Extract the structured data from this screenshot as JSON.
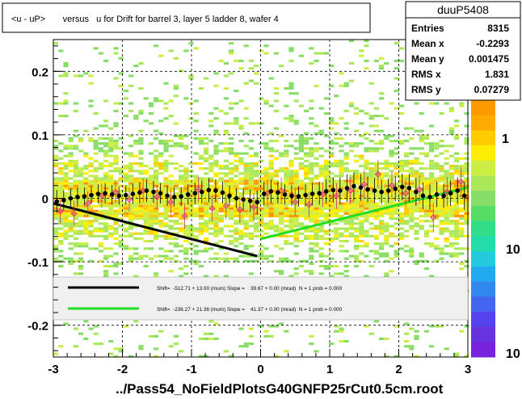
{
  "chart_data": {
    "type": "scatter",
    "title": "<u - uP>       versus   u for Drift for barrel 3, layer 5 ladder 8, wafer 4",
    "xlabel": "",
    "ylabel": "",
    "footer": "../Pass54_NoFieldPlotsG40GNFP25rCut0.5cm.root",
    "xlim": [
      -3,
      3
    ],
    "ylim": [
      -0.25,
      0.25
    ],
    "x_ticks": [
      -3,
      -2,
      -1,
      0,
      1,
      2,
      3
    ],
    "x_tick_labels": [
      "-3",
      "-2",
      "-1",
      "0",
      "1",
      "2",
      "3"
    ],
    "y_ticks": [
      -0.2,
      -0.1,
      0,
      0.1,
      0.2
    ],
    "y_tick_labels": [
      "-0.2",
      "-0.1",
      "0",
      "0.1",
      "0.2"
    ],
    "grid": true,
    "stats": {
      "name": "duuP5408",
      "rows": [
        {
          "label": "Entries",
          "value": "8315"
        },
        {
          "label": "Mean x",
          "value": "-0.2293"
        },
        {
          "label": "Mean y",
          "value": "0.001475"
        },
        {
          "label": "RMS x",
          "value": "1.831"
        },
        {
          "label": "RMS y",
          "value": "0.07279"
        }
      ]
    },
    "colorbar_labels": [
      "1",
      "10",
      "10"
    ],
    "fits": [
      {
        "color": "#000000",
        "x": [
          -3.0,
          -0.05
        ],
        "y": [
          -0.008,
          -0.091
        ],
        "text": "Shift=  -512.71 + 13.00 (mum) Slope =    39.67 + 0.00 (mrad)  N = 1 prob = 0.000"
      },
      {
        "color": "#22dd22",
        "x": [
          0.0,
          3.0
        ],
        "y": [
          -0.064,
          0.017
        ],
        "text": "Shift=  -236.27 + 21.36 (mum) Slope =    41.37 + 0.00 (mrad)  N = 1 prob = 0.000"
      }
    ],
    "profile_black": {
      "x": [
        -2.95,
        -2.85,
        -2.75,
        -2.65,
        -2.55,
        -2.45,
        -2.35,
        -2.25,
        -2.15,
        -2.05,
        -1.95,
        -1.85,
        -1.75,
        -1.65,
        -1.55,
        -1.45,
        -1.35,
        -1.25,
        -1.15,
        -1.05,
        -0.95,
        -0.85,
        -0.75,
        -0.65,
        -0.55,
        -0.45,
        -0.35,
        -0.25,
        -0.15,
        -0.05,
        0.05,
        0.15,
        0.25,
        0.35,
        0.45,
        0.55,
        0.65,
        0.75,
        0.85,
        0.95,
        1.05,
        1.15,
        1.25,
        1.35,
        1.45,
        1.55,
        1.65,
        1.75,
        1.85,
        1.95,
        2.05,
        2.15,
        2.25,
        2.35,
        2.45,
        2.55,
        2.65,
        2.75,
        2.85,
        2.95
      ],
      "y": [
        -0.005,
        -0.003,
        0.0,
        0.002,
        0.003,
        0.005,
        0.007,
        0.008,
        0.006,
        0.004,
        0.005,
        0.007,
        0.009,
        0.012,
        0.01,
        0.008,
        0.004,
        0.002,
        0.003,
        0.006,
        0.008,
        0.01,
        0.013,
        0.012,
        0.009,
        0.004,
        0.0,
        -0.002,
        -0.004,
        -0.006,
        0.007,
        0.011,
        0.009,
        0.006,
        0.004,
        0.003,
        0.005,
        0.007,
        0.008,
        0.011,
        0.013,
        0.012,
        0.016,
        0.019,
        0.017,
        0.014,
        0.012,
        0.01,
        0.012,
        0.015,
        0.018,
        0.016,
        0.01,
        0.004,
        0.002,
        0.006,
        0.004,
        0.008,
        0.012,
        0.004
      ],
      "err": [
        0.018,
        0.016,
        0.015,
        0.015,
        0.014,
        0.014,
        0.015,
        0.016,
        0.015,
        0.014,
        0.015,
        0.016,
        0.017,
        0.018,
        0.017,
        0.016,
        0.016,
        0.015,
        0.015,
        0.016,
        0.017,
        0.018,
        0.019,
        0.018,
        0.017,
        0.016,
        0.016,
        0.017,
        0.018,
        0.019,
        0.019,
        0.018,
        0.017,
        0.016,
        0.016,
        0.016,
        0.017,
        0.018,
        0.018,
        0.019,
        0.02,
        0.021,
        0.022,
        0.022,
        0.021,
        0.02,
        0.02,
        0.019,
        0.019,
        0.02,
        0.021,
        0.022,
        0.022,
        0.021,
        0.02,
        0.02,
        0.019,
        0.02,
        0.021,
        0.022
      ]
    },
    "profile_pink": {
      "x": [
        -2.9,
        -2.7,
        -2.5,
        -2.3,
        -2.1,
        -1.9,
        -1.7,
        -1.5,
        -1.3,
        -1.1,
        -0.9,
        -0.7,
        -0.5,
        -0.3,
        -0.1,
        0.1,
        0.3,
        0.5,
        0.7,
        0.9,
        1.1,
        1.3,
        1.5,
        1.7,
        1.9,
        2.1,
        2.3,
        2.5,
        2.7,
        2.9
      ],
      "y": [
        -0.02,
        -0.024,
        -0.008,
        0.004,
        0.01,
        -0.002,
        0.012,
        0.002,
        -0.006,
        -0.028,
        0.014,
        -0.016,
        -0.012,
        -0.018,
        -0.014,
        0.008,
        0.012,
        -0.006,
        -0.01,
        0.006,
        0.004,
        0.012,
        0.022,
        0.038,
        0.02,
        0.008,
        0.014,
        -0.03,
        0.01,
        0.026
      ],
      "err": [
        0.02,
        0.02,
        0.019,
        0.019,
        0.018,
        0.019,
        0.019,
        0.019,
        0.02,
        0.02,
        0.02,
        0.021,
        0.021,
        0.021,
        0.022,
        0.022,
        0.021,
        0.021,
        0.02,
        0.02,
        0.02,
        0.021,
        0.022,
        0.022,
        0.022,
        0.022,
        0.022,
        0.023,
        0.023,
        0.024
      ]
    }
  }
}
